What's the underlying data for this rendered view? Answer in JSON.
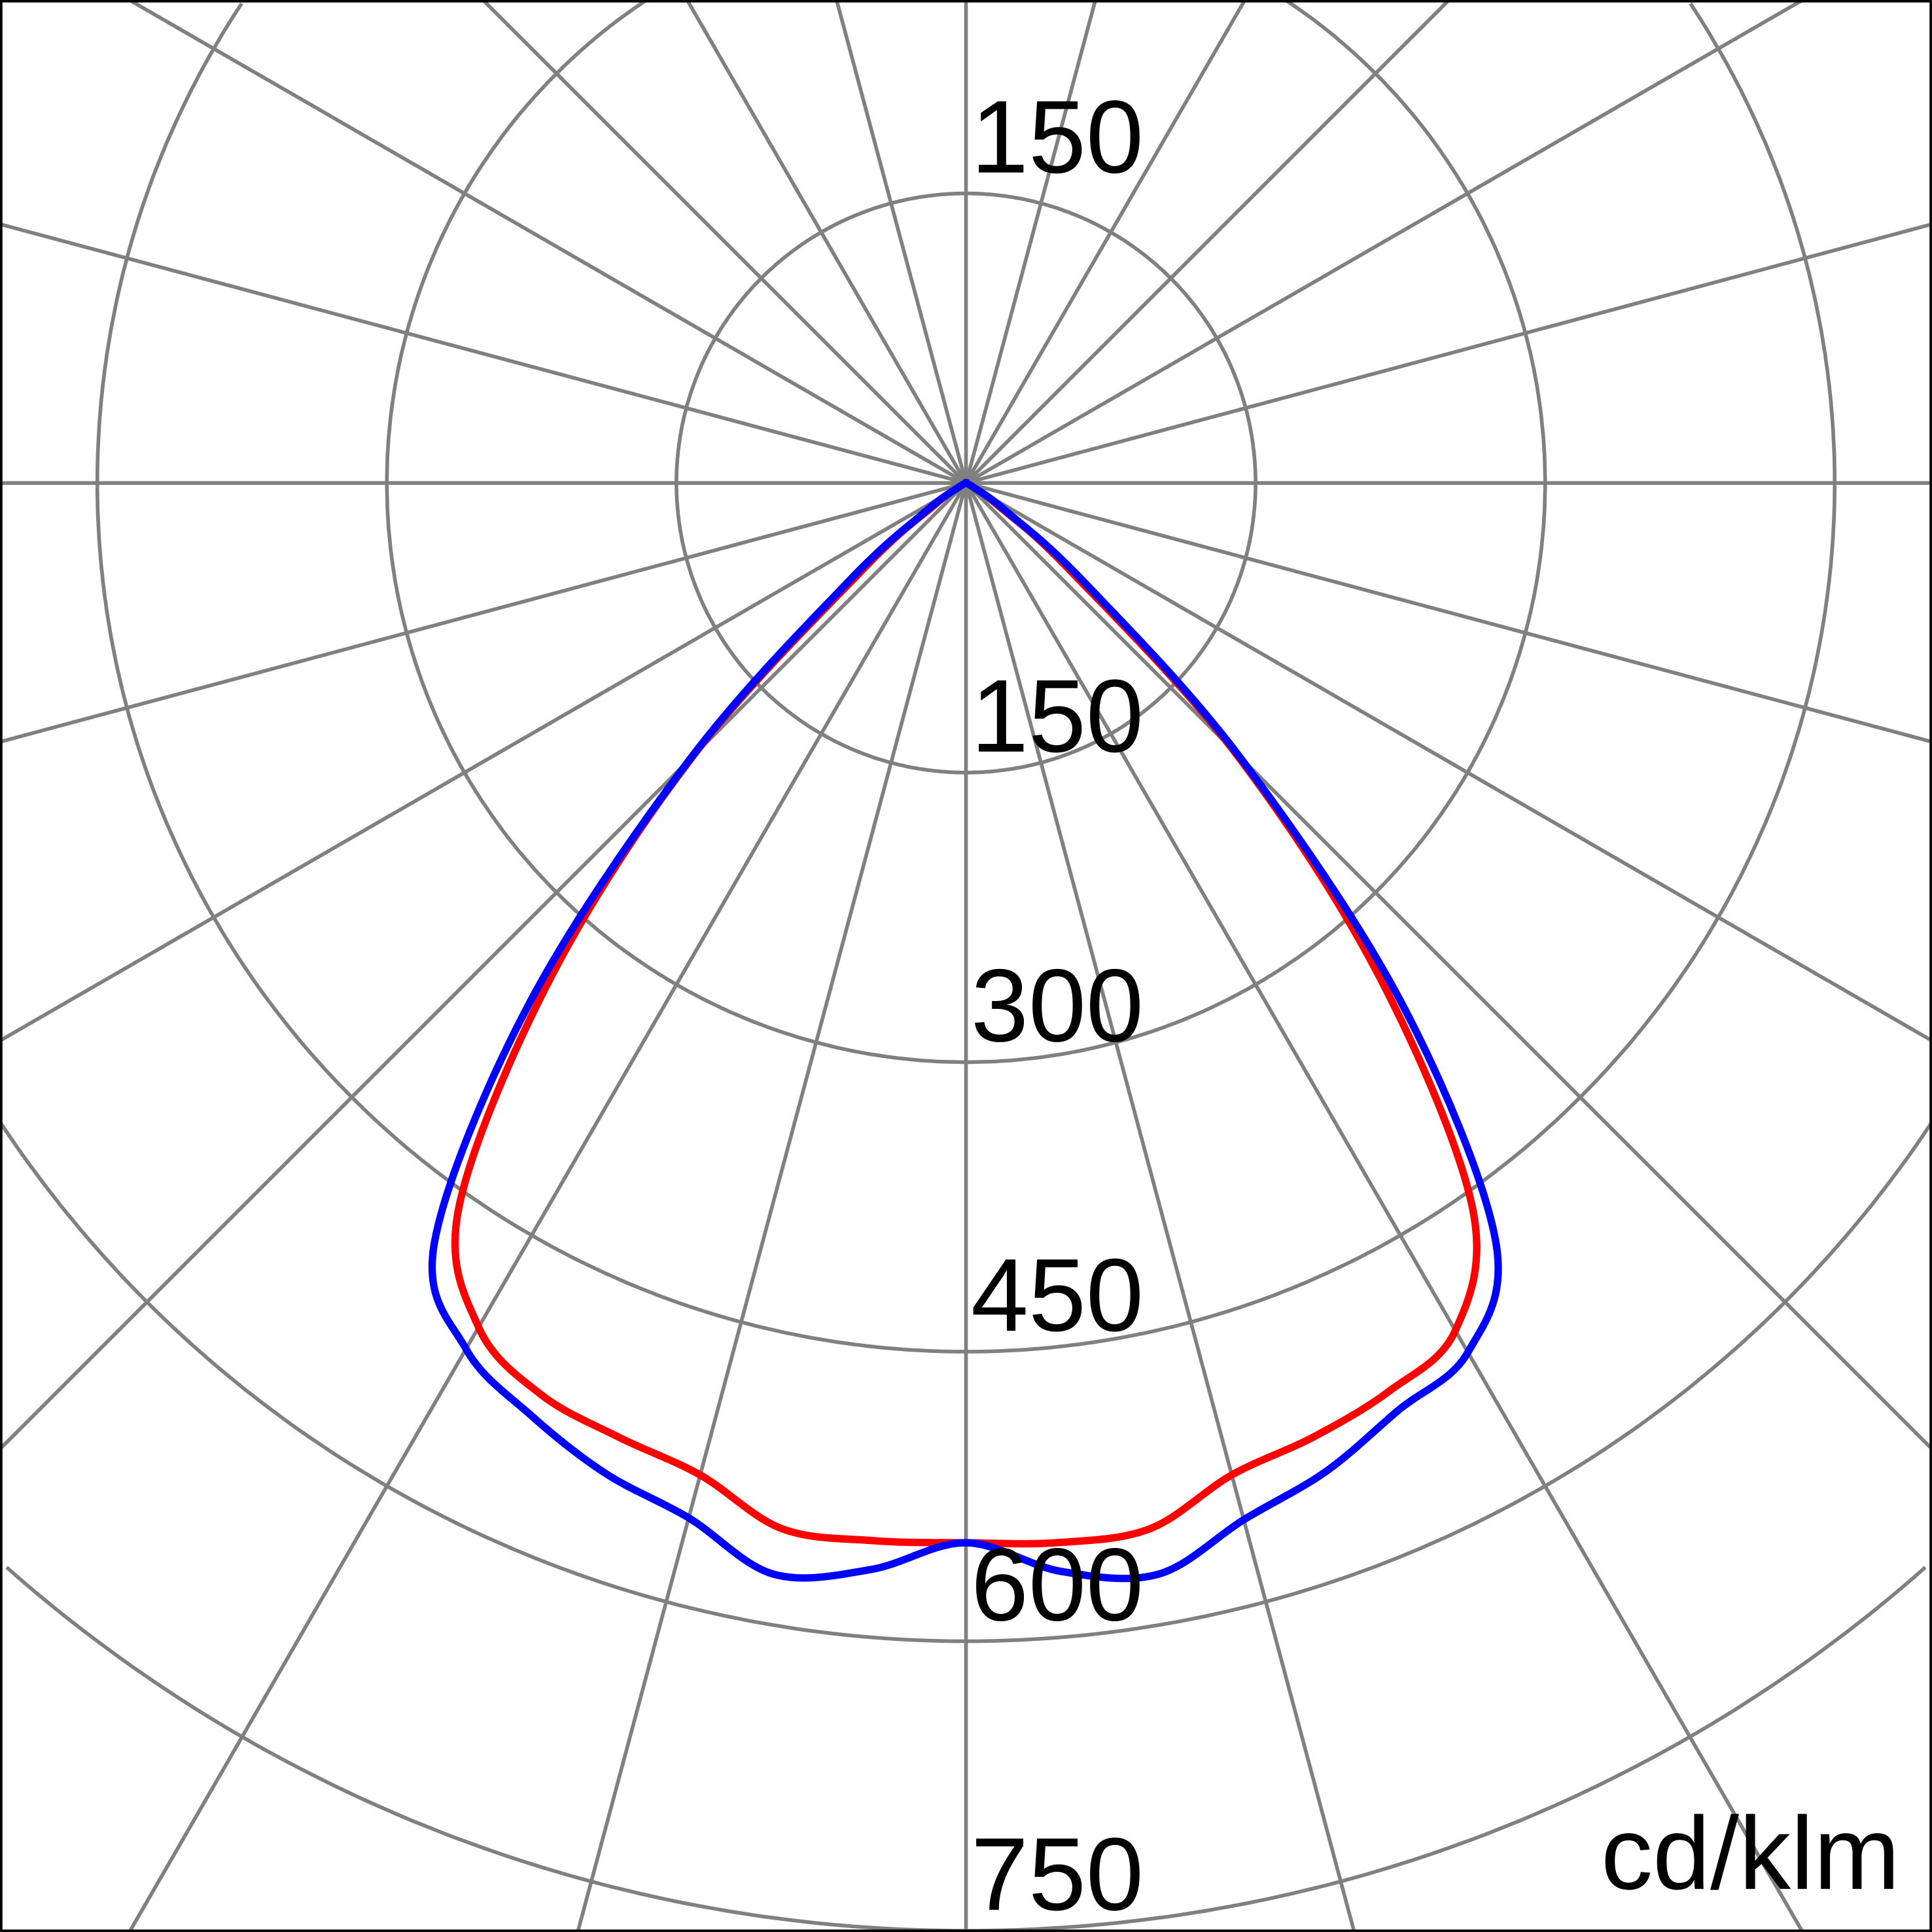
{
  "chart_data": {
    "type": "polar-line",
    "unit_label": "cd/klm",
    "radial_ticks": [
      150,
      300,
      450,
      600,
      750
    ],
    "top_tick_label": "150",
    "angle_step_deg": 15,
    "rlim": [
      0,
      900
    ],
    "grid": true,
    "angle_reference": "0 deg = straight down (nadir), gamma -90..90",
    "gamma": [
      -90,
      -85,
      -80,
      -75,
      -70,
      -65,
      -60,
      -55,
      -50,
      -45,
      -40,
      -35,
      -30,
      -25,
      -20,
      -15,
      -10,
      -5,
      0,
      5,
      10,
      15,
      20,
      25,
      30,
      35,
      40,
      45,
      50,
      55,
      60,
      65,
      70,
      75,
      80,
      85,
      90
    ],
    "series": [
      {
        "color": "#ff0000",
        "values": [
          0,
          0,
          0,
          0,
          0,
          0,
          5,
          20,
          70,
          200,
          335,
          458,
          505,
          521,
          526,
          532,
          550,
          550,
          549,
          551,
          550,
          532,
          526,
          519,
          507,
          457,
          332,
          196,
          70,
          20,
          5,
          0,
          0,
          0,
          0,
          0,
          0
        ]
      },
      {
        "color": "#0000ff",
        "values": [
          0,
          0,
          0,
          0,
          0,
          0,
          5,
          25,
          80,
          202,
          352,
          480,
          518,
          533,
          546,
          555,
          574,
          565,
          549,
          566,
          574,
          556,
          545,
          530,
          520,
          478,
          350,
          200,
          80,
          25,
          5,
          0,
          0,
          0,
          0,
          0,
          0
        ]
      }
    ],
    "colors": {
      "grid": "#808080",
      "border": "#000000"
    }
  }
}
